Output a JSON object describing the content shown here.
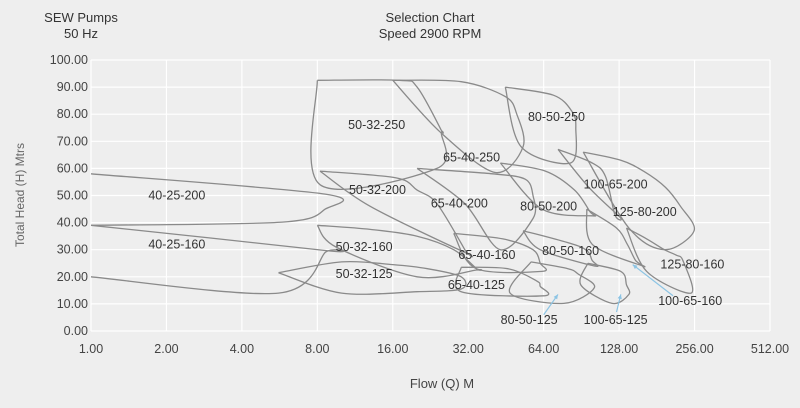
{
  "header": {
    "brand": "SEW Pumps",
    "frequency": "50 Hz",
    "title": "Selection Chart",
    "subtitle": "Speed 2900 RPM"
  },
  "chart_data": {
    "type": "line",
    "title": "Selection Chart",
    "subtitle": "Speed 2900 RPM",
    "xlabel": "Flow (Q)  M",
    "ylabel": "Total Head (H) Mtrs",
    "xscale": "log2",
    "xlim": [
      1,
      512
    ],
    "ylim": [
      0,
      100
    ],
    "xticks": [
      "1.00",
      "2.00",
      "4.00",
      "8.00",
      "16.00",
      "32.00",
      "64.00",
      "128.00",
      "256.00",
      "512.00"
    ],
    "xtick_values": [
      1,
      2,
      4,
      8,
      16,
      32,
      64,
      128,
      256,
      512
    ],
    "yticks": [
      "0.00",
      "10.00",
      "20.00",
      "30.00",
      "40.00",
      "50.00",
      "60.00",
      "70.00",
      "80.00",
      "90.00",
      "100.00"
    ],
    "ytick_values": [
      0,
      10,
      20,
      30,
      40,
      50,
      60,
      70,
      80,
      90,
      100
    ],
    "grid": true,
    "series": [
      {
        "name": "40-25-200",
        "q": [
          1,
          8.6,
          8.6,
          5.8,
          1
        ],
        "h": [
          58,
          50.5,
          45,
          40.2,
          39
        ],
        "closed": false
      },
      {
        "name": "40-25-160",
        "q": [
          1,
          8.6,
          8.6,
          5.6,
          1
        ],
        "h": [
          39,
          29.7,
          29,
          14,
          20
        ],
        "closed": false
      },
      {
        "name": "50-32-250",
        "q": [
          8,
          17,
          20,
          25,
          25,
          24,
          8.2
        ],
        "h": [
          92.5,
          92.5,
          90,
          74,
          73,
          60,
          54
        ]
      },
      {
        "name": "50-32-200",
        "q": [
          8.2,
          16.5,
          20,
          24,
          31,
          31,
          13
        ],
        "h": [
          59,
          56.5,
          52,
          47,
          30,
          29,
          46
        ]
      },
      {
        "name": "50-32-160",
        "q": [
          8,
          13,
          20,
          28,
          34.5,
          34.5,
          20,
          9.5
        ],
        "h": [
          39,
          37.5,
          35,
          30,
          23,
          22.5,
          20,
          31
        ]
      },
      {
        "name": "50-32-125",
        "q": [
          5.6,
          10,
          16,
          22,
          30,
          30,
          20,
          10
        ],
        "h": [
          21.5,
          25.5,
          24.5,
          23,
          20,
          15.5,
          14.5,
          14
        ]
      },
      {
        "name": "65-40-250",
        "q": [
          16,
          30,
          45,
          50,
          53,
          41,
          25
        ],
        "h": [
          92.5,
          92,
          86.5,
          80,
          68,
          58.5,
          73
        ]
      },
      {
        "name": "65-40-200",
        "q": [
          20,
          40,
          54,
          58,
          58,
          43,
          31
        ],
        "h": [
          60,
          58,
          56,
          50,
          41.5,
          30,
          47
        ]
      },
      {
        "name": "65-40-160",
        "q": [
          28,
          44,
          58,
          62,
          63,
          34.5
        ],
        "h": [
          36,
          34,
          30,
          25,
          22,
          23
        ]
      },
      {
        "name": "65-40-125",
        "q": [
          30,
          46,
          60,
          62,
          64,
          30
        ],
        "h": [
          23.5,
          23,
          18.5,
          16.5,
          13,
          14.5
        ]
      },
      {
        "name": "80-50-250",
        "q": [
          45,
          70,
          83,
          86,
          82,
          52
        ],
        "h": [
          90,
          87,
          81,
          75,
          62,
          68
        ]
      },
      {
        "name": "80-50-200",
        "q": [
          43,
          65,
          85,
          98,
          100,
          63
        ],
        "h": [
          62,
          59,
          52,
          44,
          42.5,
          45
        ]
      },
      {
        "name": "80-50-160",
        "q": [
          53,
          90,
          100,
          102,
          62
        ],
        "h": [
          37,
          31,
          26,
          24,
          30
        ]
      },
      {
        "name": "80-50-125",
        "q": [
          57,
          80,
          88,
          102,
          77,
          47
        ],
        "h": [
          25.5,
          23,
          21,
          16,
          10.2,
          14
        ]
      },
      {
        "name": "100-65-200",
        "q": [
          73,
          100,
          113,
          123,
          129,
          97
        ],
        "h": [
          67,
          62,
          57,
          43,
          42,
          53
        ]
      },
      {
        "name": "100-65-160",
        "q": [
          95,
          125,
          138,
          149,
          159,
          100
        ],
        "h": [
          45,
          38,
          32,
          26,
          24,
          32
        ]
      },
      {
        "name": "100-65-125",
        "q": [
          96,
          130,
          137,
          140,
          120,
          90
        ],
        "h": [
          25,
          22,
          17,
          13.5,
          10.2,
          17
        ]
      },
      {
        "name": "125-80-200",
        "q": [
          92,
          130,
          160,
          196,
          225,
          255,
          195,
          140
        ],
        "h": [
          66,
          63,
          59,
          53,
          46,
          37,
          30,
          38
        ]
      },
      {
        "name": "125-80-160",
        "q": [
          137,
          165,
          194,
          216,
          230,
          248,
          165
        ],
        "h": [
          38,
          34,
          30,
          28,
          26,
          14,
          22
        ]
      }
    ],
    "curve_labels": [
      {
        "text": "40-25-200",
        "q": 2.2,
        "h": 50
      },
      {
        "text": "40-25-160",
        "q": 2.2,
        "h": 32
      },
      {
        "text": "50-32-250",
        "q": 13.8,
        "h": 76
      },
      {
        "text": "50-32-200",
        "q": 13.9,
        "h": 52
      },
      {
        "text": "50-32-160",
        "q": 12.3,
        "h": 31
      },
      {
        "text": "50-32-125",
        "q": 12.3,
        "h": 21
      },
      {
        "text": "65-40-250",
        "q": 33,
        "h": 64
      },
      {
        "text": "65-40-200",
        "q": 29.5,
        "h": 47
      },
      {
        "text": "65-40-160",
        "q": 38,
        "h": 28
      },
      {
        "text": "65-40-125",
        "q": 34.5,
        "h": 17
      },
      {
        "text": "80-50-250",
        "q": 72,
        "h": 79
      },
      {
        "text": "80-50-200",
        "q": 67,
        "h": 46
      },
      {
        "text": "80-50-160",
        "q": 82,
        "h": 29.5
      },
      {
        "text": "80-50-125",
        "q": 56,
        "h": 4
      },
      {
        "text": "100-65-200",
        "q": 124,
        "h": 54
      },
      {
        "text": "100-65-160",
        "q": 246,
        "h": 11
      },
      {
        "text": "100-65-125",
        "q": 124,
        "h": 4
      },
      {
        "text": "125-80-200",
        "q": 162,
        "h": 44
      },
      {
        "text": "125-80-160",
        "q": 251,
        "h": 24.5
      }
    ],
    "pointer_arrows": [
      {
        "from_q": 64,
        "from_h": 6,
        "to_q": 73,
        "to_h": 13.5
      },
      {
        "from_q": 125,
        "from_h": 7,
        "to_q": 130,
        "to_h": 13.5
      },
      {
        "from_q": 210,
        "from_h": 13,
        "to_q": 145,
        "to_h": 24.5
      }
    ],
    "colors": {
      "background": "#eeeeee",
      "grid": "#ffffff",
      "curve": "#8a8a8a",
      "text": "#444444",
      "arrow": "#8cc4e4"
    }
  }
}
